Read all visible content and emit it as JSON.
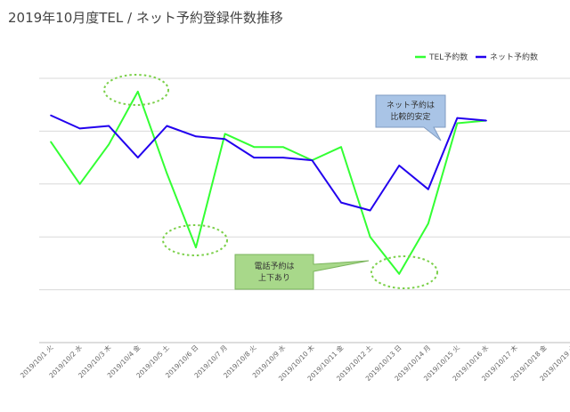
{
  "chart_data": {
    "type": "line",
    "title": "2019年10月度TEL / ネット予約登録件数推移",
    "categories": [
      "2019/10/1 火",
      "2019/10/2 水",
      "2019/10/3 木",
      "2019/10/4 金",
      "2019/10/5 土",
      "2019/10/6 日",
      "2019/10/7 月",
      "2019/10/8 火",
      "2019/10/9 水",
      "2019/10/10 木",
      "2019/10/11 金",
      "2019/10/12 土",
      "2019/10/13 日",
      "2019/10/14 月",
      "2019/10/15 火",
      "2019/10/16 水",
      "2019/10/17 木",
      "2019/10/18 金",
      "2019/10/19 土"
    ],
    "ylim": [
      0,
      100
    ],
    "grid": true,
    "legend": "top-right",
    "series": [
      {
        "name": "TEL予約数",
        "color": "#33ff33",
        "values": [
          76,
          60,
          75,
          95,
          64,
          36,
          79,
          74,
          74,
          69,
          74,
          40,
          26,
          45,
          83,
          84,
          null,
          null,
          null
        ]
      },
      {
        "name": "ネット予約数",
        "color": "#2200ee",
        "values": [
          86,
          81,
          82,
          70,
          82,
          78,
          77,
          70,
          70,
          69,
          53,
          50,
          67,
          58,
          85,
          84,
          null,
          null,
          null
        ]
      }
    ],
    "annotations": [
      {
        "text": [
          "ネット予約は",
          "比較的安定"
        ],
        "color": "#a9c4e6",
        "border": "#7f9bc2"
      },
      {
        "text": [
          "電話予約は",
          "上下あり"
        ],
        "color": "#a8d88a",
        "border": "#7ab55c"
      }
    ]
  }
}
